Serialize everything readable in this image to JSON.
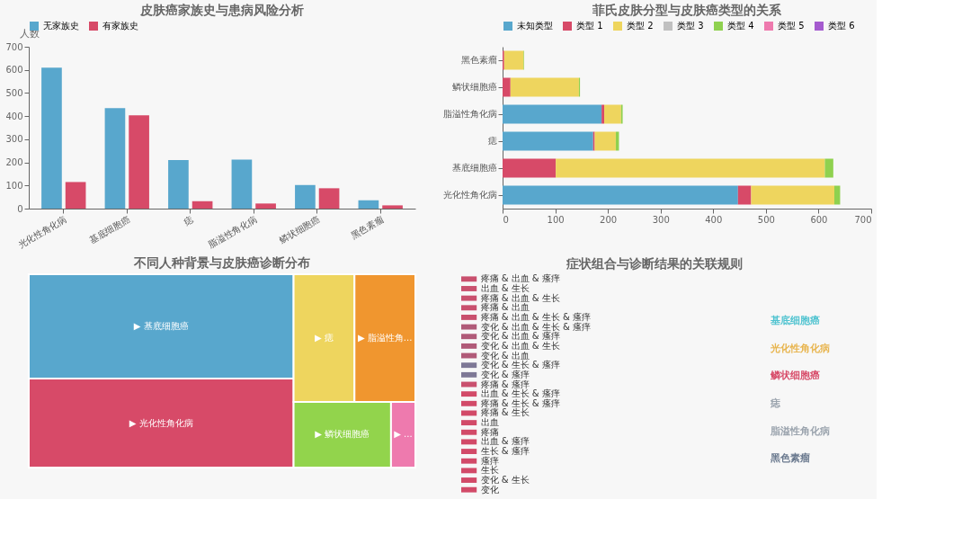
{
  "chart_data": [
    {
      "type": "bar",
      "title": "皮肤癌家族史与患病风险分析",
      "ylabel": "人数",
      "categories": [
        "光化性角化病",
        "基底细胞癌",
        "痣",
        "脂溢性角化病",
        "鳞状细胞癌",
        "黑色素瘤"
      ],
      "series": [
        {
          "name": "无家族史",
          "color": "#58a7cd",
          "values": [
            610,
            435,
            210,
            212,
            102,
            36
          ]
        },
        {
          "name": "有家族史",
          "color": "#d74a68",
          "values": [
            115,
            403,
            32,
            22,
            88,
            14
          ]
        }
      ],
      "ylim": [
        0,
        700
      ],
      "yticks": [
        0,
        100,
        200,
        300,
        400,
        500,
        600,
        700
      ],
      "legend": "top"
    },
    {
      "type": "bar",
      "title": "菲氏皮肤分型与皮肤癌类型的关系",
      "orientation": "horizontal",
      "stacked": true,
      "categories": [
        "黑色素瘤",
        "鳞状细胞癌",
        "脂溢性角化病",
        "痣",
        "基底细胞癌",
        "光化性角化病"
      ],
      "series": [
        {
          "name": "未知类型",
          "color": "#58a7cd",
          "values": [
            null,
            null,
            188,
            172,
            null,
            447
          ]
        },
        {
          "name": "类型 1",
          "color": "#d74a68",
          "values": [
            3,
            15,
            5,
            3,
            101,
            25
          ]
        },
        {
          "name": "类型 2",
          "color": "#eed55e",
          "values": [
            37,
            130,
            32,
            40,
            511,
            158
          ]
        },
        {
          "name": "类型 3",
          "color": "#c0c0c0",
          "values": [
            null,
            null,
            null,
            null,
            null,
            null
          ]
        },
        {
          "name": "类型 4",
          "color": "#8fd14f",
          "values": [
            1,
            2,
            3,
            6,
            16,
            11
          ]
        },
        {
          "name": "类型 5",
          "color": "#ee7aae",
          "values": [
            null,
            null,
            null,
            null,
            null,
            null
          ]
        },
        {
          "name": "类型 6",
          "color": "#a55bcf",
          "values": [
            null,
            null,
            null,
            null,
            null,
            null
          ]
        }
      ],
      "xlim": [
        0,
        700
      ],
      "xticks": [
        0,
        100,
        200,
        300,
        400,
        500,
        600,
        700
      ],
      "legend": "top"
    },
    {
      "type": "other",
      "title": "不同人种背景与皮肤癌诊断分布",
      "categories": [
        "▶ 基底细胞癌",
        "▶ 光化性角化病",
        "▶ 痣",
        "▶ 脂溢性角...",
        "▶ 鳞状细胞癌",
        "▶ ..."
      ],
      "colors": [
        "#58a7cd",
        "#d74a68",
        "#eed55e",
        "#f0962f",
        "#92d44c",
        "#ee7aae"
      ]
    },
    {
      "type": "other",
      "title": "症状组合与诊断结果的关联规则",
      "categories": [
        "疼痛 & 出血 & 瘙痒",
        "出血 & 生长",
        "疼痛 & 出血 & 生长",
        "疼痛 & 出血",
        "疼痛 & 出血 & 生长 & 瘙痒",
        "变化 & 出血 & 生长 & 瘙痒",
        "变化 & 出血 & 瘙痒",
        "变化 & 出血 & 生长",
        "变化 & 出血",
        "变化 & 生长 & 瘙痒",
        "变化 & 瘙痒",
        "疼痛 & 瘙痒",
        "出血 & 生长 & 瘙痒",
        "疼痛 & 生长 & 瘙痒",
        "疼痛 & 生长",
        "出血",
        "疼痛",
        "出血 & 瘙痒",
        "生长 & 瘙痒",
        "瘙痒",
        "生长",
        "变化 & 生长",
        "变化"
      ],
      "y2_categories": [
        "基底细胞癌",
        "光化性角化病",
        "鳞状细胞癌",
        "痣",
        "脂溢性角化病",
        "黑色素瘤"
      ],
      "colors": [
        "#c9506e",
        "#c9506e",
        "#c9506e",
        "#c9506e",
        "#c9506e",
        "#b05a78",
        "#b05a78",
        "#b05a78",
        "#b05a78",
        "#7e7896",
        "#7e7896",
        "#c9506e",
        "#d24a68",
        "#d24a68",
        "#d24a68",
        "#d24a68",
        "#d24a68",
        "#d24a68",
        "#d24a68",
        "#d24a68",
        "#d24a68",
        "#d24a68",
        "#d24a68",
        "#4fc3d0",
        "#e8b54f",
        "#d74a68",
        "#9aa3ad",
        "#9aa3ad",
        "#6b7a8f"
      ]
    }
  ]
}
